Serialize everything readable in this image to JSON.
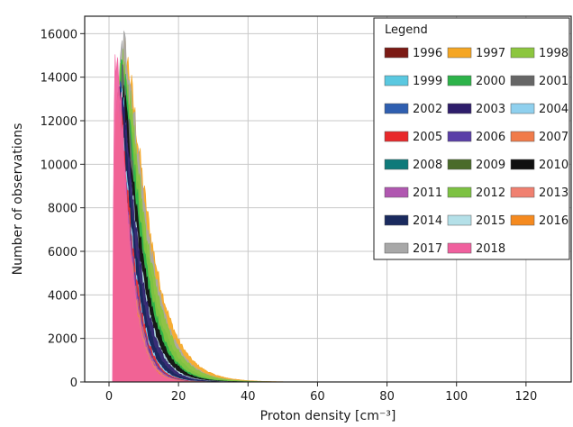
{
  "chart_data": {
    "type": "area",
    "title": "",
    "xlabel": "Proton density [cm⁻³]",
    "ylabel": "Number of observations",
    "xlim": [
      -7,
      133
    ],
    "ylim": [
      0,
      16800
    ],
    "xticks": [
      0,
      20,
      40,
      60,
      80,
      100,
      120
    ],
    "yticks": [
      0,
      2000,
      4000,
      6000,
      8000,
      10000,
      12000,
      14000,
      16000
    ],
    "grid": true,
    "legend": {
      "title": "Legend",
      "placement": "top-right",
      "columns": 3
    },
    "series": [
      {
        "name": "1996",
        "color": "#7b1a14",
        "peak_x": 3.0,
        "peak": 12800,
        "shape": 1.4,
        "scale": 3.4,
        "draw_order": 10
      },
      {
        "name": "1997",
        "color": "#f5a623",
        "peak_x": 4.4,
        "peak": 15100,
        "shape": 1.4,
        "scale": 5.4,
        "draw_order": 1
      },
      {
        "name": "1998",
        "color": "#8cc63f",
        "peak_x": 4.0,
        "peak": 14700,
        "shape": 1.4,
        "scale": 5.0,
        "draw_order": 3
      },
      {
        "name": "1999",
        "color": "#5ac8e0",
        "peak_x": 3.2,
        "peak": 13300,
        "shape": 1.4,
        "scale": 3.6,
        "draw_order": 8
      },
      {
        "name": "2000",
        "color": "#2db34a",
        "peak_x": 3.8,
        "peak": 14200,
        "shape": 1.4,
        "scale": 4.3,
        "draw_order": 5
      },
      {
        "name": "2001",
        "color": "#666666",
        "peak_x": 3.6,
        "peak": 14000,
        "shape": 1.4,
        "scale": 4.0,
        "draw_order": 6
      },
      {
        "name": "2002",
        "color": "#2f5fb0",
        "peak_x": 3.0,
        "peak": 13200,
        "shape": 1.4,
        "scale": 3.3,
        "draw_order": 11
      },
      {
        "name": "2003",
        "color": "#2e1d6b",
        "peak_x": 3.4,
        "peak": 13400,
        "shape": 1.4,
        "scale": 3.7,
        "draw_order": 12
      },
      {
        "name": "2004",
        "color": "#8fd0ee",
        "peak_x": 2.9,
        "peak": 12500,
        "shape": 1.4,
        "scale": 3.2,
        "draw_order": 14
      },
      {
        "name": "2005",
        "color": "#e8292b",
        "peak_x": 2.8,
        "peak": 12800,
        "shape": 1.4,
        "scale": 3.1,
        "draw_order": 15
      },
      {
        "name": "2006",
        "color": "#5a3ea8",
        "peak_x": 2.7,
        "peak": 12600,
        "shape": 1.4,
        "scale": 3.0,
        "draw_order": 16
      },
      {
        "name": "2007",
        "color": "#f07b4a",
        "peak_x": 2.6,
        "peak": 12700,
        "shape": 1.4,
        "scale": 2.9,
        "draw_order": 17
      },
      {
        "name": "2008",
        "color": "#0e7a7a",
        "peak_x": 2.5,
        "peak": 12400,
        "shape": 1.4,
        "scale": 2.8,
        "draw_order": 18
      },
      {
        "name": "2009",
        "color": "#4a6b2a",
        "peak_x": 2.4,
        "peak": 12900,
        "shape": 1.4,
        "scale": 2.7,
        "draw_order": 19
      },
      {
        "name": "2010",
        "color": "#111111",
        "peak_x": 3.7,
        "peak": 13300,
        "shape": 1.4,
        "scale": 4.2,
        "draw_order": 7
      },
      {
        "name": "2011",
        "color": "#b057b0",
        "peak_x": 2.6,
        "peak": 12500,
        "shape": 1.4,
        "scale": 2.9,
        "draw_order": 20
      },
      {
        "name": "2012",
        "color": "#7dc242",
        "peak_x": 4.2,
        "peak": 14000,
        "shape": 1.4,
        "scale": 4.6,
        "draw_order": 4
      },
      {
        "name": "2013",
        "color": "#f08070",
        "peak_x": 2.5,
        "peak": 12600,
        "shape": 1.4,
        "scale": 2.8,
        "draw_order": 21
      },
      {
        "name": "2014",
        "color": "#1a2a5e",
        "peak_x": 3.0,
        "peak": 13100,
        "shape": 1.4,
        "scale": 3.5,
        "draw_order": 13
      },
      {
        "name": "2015",
        "color": "#b4e0e8",
        "peak_x": 3.3,
        "peak": 13000,
        "shape": 1.4,
        "scale": 3.9,
        "draw_order": 9
      },
      {
        "name": "2016",
        "color": "#f58a1f",
        "peak_x": 2.4,
        "peak": 12300,
        "shape": 1.4,
        "scale": 2.7,
        "draw_order": 22
      },
      {
        "name": "2017",
        "color": "#a8a8a8",
        "peak_x": 4.2,
        "peak": 15500,
        "shape": 1.4,
        "scale": 5.0,
        "draw_order": 2
      },
      {
        "name": "2018",
        "color": "#f0609e",
        "peak_x": 2.2,
        "peak": 15000,
        "shape": 1.4,
        "scale": 2.6,
        "draw_order": 23
      }
    ]
  }
}
